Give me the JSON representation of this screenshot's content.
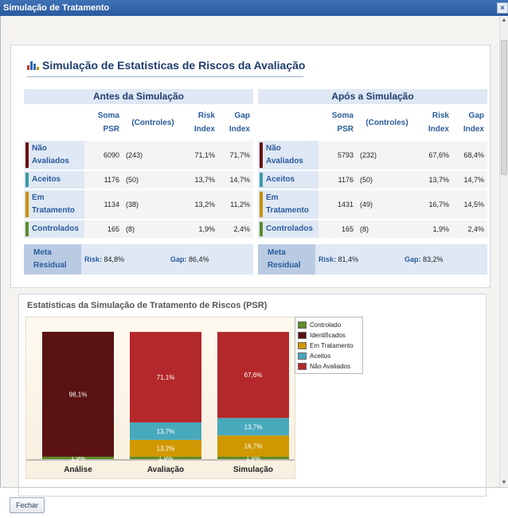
{
  "window": {
    "title": "Simulação de Tratamento",
    "close_glyph": "×"
  },
  "section": {
    "title": "Simulação de Estatisticas de Riscos da Avaliação",
    "icon": "bar-chart-icon"
  },
  "columns": {
    "soma": "Soma PSR",
    "controles": "(Controles)",
    "risk_index": "Risk Index",
    "gap_index": "Gap Index"
  },
  "before": {
    "header": "Antes da Simulação",
    "rows": [
      {
        "label": "Não Avaliados",
        "color": "#6b0f0f",
        "soma": "6090",
        "controles": "(243)",
        "risk": "71,1%",
        "gap": "71,7%"
      },
      {
        "label": "Aceitos",
        "color": "#3a9aaa",
        "soma": "1176",
        "controles": "(50)",
        "risk": "13,7%",
        "gap": "14,7%"
      },
      {
        "label": "Em Tratamento",
        "color": "#c89000",
        "soma": "1134",
        "controles": "(38)",
        "risk": "13,2%",
        "gap": "11,2%"
      },
      {
        "label": "Controlados",
        "color": "#5d8a2a",
        "soma": "165",
        "controles": "(8)",
        "risk": "1,9%",
        "gap": "2,4%"
      }
    ],
    "meta": {
      "label": "Meta Residual",
      "risk_label": "Risk:",
      "risk_value": "84,8%",
      "gap_label": "Gap:",
      "gap_value": "86,4%"
    }
  },
  "after": {
    "header": "Após a Simulação",
    "rows": [
      {
        "label": "Não Avaliados",
        "color": "#6b0f0f",
        "soma": "5793",
        "controles": "(232)",
        "risk": "67,6%",
        "gap": "68,4%"
      },
      {
        "label": "Aceitos",
        "color": "#3a9aaa",
        "soma": "1176",
        "controles": "(50)",
        "risk": "13,7%",
        "gap": "14,7%"
      },
      {
        "label": "Em Tratamento",
        "color": "#c89000",
        "soma": "1431",
        "controles": "(49)",
        "risk": "16,7%",
        "gap": "14,5%"
      },
      {
        "label": "Controlados",
        "color": "#5d8a2a",
        "soma": "165",
        "controles": "(8)",
        "risk": "1,9%",
        "gap": "2,4%"
      }
    ],
    "meta": {
      "label": "Meta Residual",
      "risk_label": "Risk:",
      "risk_value": "81,4%",
      "gap_label": "Gap:",
      "gap_value": "83,2%"
    }
  },
  "chart_data": {
    "type": "bar",
    "stacked": true,
    "title": "Estatisticas da Simulação de Tratamento de Riscos (PSR)",
    "categories": [
      "Análise",
      "Avaliação",
      "Simulação"
    ],
    "ylim": [
      0,
      100
    ],
    "legend_position": "right",
    "series": [
      {
        "name": "Controlado",
        "color": "#5d8a2a",
        "values": [
          1.9,
          1.9,
          1.9
        ]
      },
      {
        "name": "Identificados",
        "color": "#5a1212",
        "values": [
          98.1,
          null,
          null
        ]
      },
      {
        "name": "Em Tratamento",
        "color": "#d09800",
        "values": [
          null,
          13.2,
          16.7
        ]
      },
      {
        "name": "Aceitos",
        "color": "#49a9bc",
        "values": [
          null,
          13.7,
          13.7
        ]
      },
      {
        "name": "Não Avaliados",
        "color": "#b3282a",
        "values": [
          null,
          71.1,
          67.6
        ]
      }
    ],
    "value_labels": [
      [
        "1,9%",
        "98,1%",
        "",
        "",
        ""
      ],
      [
        "1,9%",
        "",
        "13,2%",
        "13,7%",
        "71,1%"
      ],
      [
        "1,9%",
        "",
        "16,7%",
        "13,7%",
        "67,6%"
      ]
    ]
  },
  "footer": {
    "close_button": "Fechar"
  }
}
